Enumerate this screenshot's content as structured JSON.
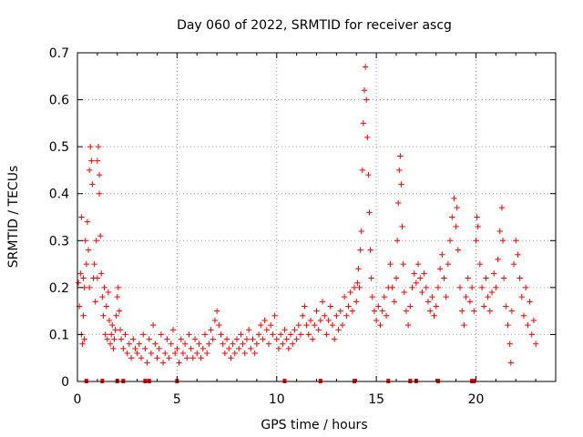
{
  "chart_data": {
    "type": "scatter",
    "title": "Day 060 of 2022, SRMTID for receiver ascg",
    "xlabel": "GPS time / hours",
    "ylabel": "SRMTID / TECUs",
    "xlim": [
      0,
      24
    ],
    "ylim": [
      0,
      0.7
    ],
    "grid": true,
    "marker": "+",
    "color": "#ff0000",
    "xticks": [
      {
        "v": 0,
        "label": "0"
      },
      {
        "v": 5,
        "label": "5"
      },
      {
        "v": 10,
        "label": "10"
      },
      {
        "v": 15,
        "label": "15"
      },
      {
        "v": 20,
        "label": "20"
      }
    ],
    "yticks": [
      {
        "v": 0,
        "label": "0"
      },
      {
        "v": 0.1,
        "label": "0.1"
      },
      {
        "v": 0.2,
        "label": "0.2"
      },
      {
        "v": 0.3,
        "label": "0.3"
      },
      {
        "v": 0.4,
        "label": "0.4"
      },
      {
        "v": 0.5,
        "label": "0.5"
      },
      {
        "v": 0.6,
        "label": "0.6"
      },
      {
        "v": 0.7,
        "label": "0.7"
      }
    ],
    "baseline_markers_x": [
      0.45,
      1.25,
      2.0,
      2.3,
      3.4,
      3.6,
      5.0,
      10.4,
      12.2,
      13.9,
      15.6,
      16.7,
      17.0,
      18.1,
      19.8,
      19.9
    ],
    "series": [
      {
        "name": "SRMTID",
        "points": [
          [
            0.05,
            0.21
          ],
          [
            0.1,
            0.16
          ],
          [
            0.15,
            0.23
          ],
          [
            0.2,
            0.1
          ],
          [
            0.2,
            0.35
          ],
          [
            0.25,
            0.08
          ],
          [
            0.3,
            0.22
          ],
          [
            0.3,
            0.14
          ],
          [
            0.35,
            0.2
          ],
          [
            0.35,
            0.09
          ],
          [
            0.4,
            0.3
          ],
          [
            0.45,
            0.25
          ],
          [
            0.5,
            0.34
          ],
          [
            0.55,
            0.28
          ],
          [
            0.6,
            0.45
          ],
          [
            0.6,
            0.2
          ],
          [
            0.65,
            0.5
          ],
          [
            0.7,
            0.47
          ],
          [
            0.75,
            0.42
          ],
          [
            0.8,
            0.22
          ],
          [
            0.85,
            0.25
          ],
          [
            0.9,
            0.17
          ],
          [
            0.95,
            0.3
          ],
          [
            1.0,
            0.22
          ],
          [
            1.0,
            0.47
          ],
          [
            1.05,
            0.5
          ],
          [
            1.1,
            0.44
          ],
          [
            1.1,
            0.4
          ],
          [
            1.15,
            0.31
          ],
          [
            1.2,
            0.23
          ],
          [
            1.25,
            0.18
          ],
          [
            1.3,
            0.14
          ],
          [
            1.35,
            0.2
          ],
          [
            1.4,
            0.1
          ],
          [
            1.45,
            0.16
          ],
          [
            1.5,
            0.09
          ],
          [
            1.55,
            0.19
          ],
          [
            1.6,
            0.13
          ],
          [
            1.65,
            0.08
          ],
          [
            1.7,
            0.1
          ],
          [
            1.75,
            0.12
          ],
          [
            1.8,
            0.07
          ],
          [
            1.85,
            0.09
          ],
          [
            1.9,
            0.11
          ],
          [
            1.95,
            0.14
          ],
          [
            2.0,
            0.18
          ],
          [
            2.05,
            0.2
          ],
          [
            2.1,
            0.15
          ],
          [
            2.15,
            0.11
          ],
          [
            2.2,
            0.09
          ],
          [
            2.3,
            0.07
          ],
          [
            2.4,
            0.1
          ],
          [
            2.5,
            0.06
          ],
          [
            2.6,
            0.08
          ],
          [
            2.7,
            0.05
          ],
          [
            2.8,
            0.09
          ],
          [
            2.9,
            0.07
          ],
          [
            3.0,
            0.06
          ],
          [
            3.1,
            0.08
          ],
          [
            3.2,
            0.05
          ],
          [
            3.3,
            0.1
          ],
          [
            3.4,
            0.07
          ],
          [
            3.5,
            0.04
          ],
          [
            3.6,
            0.09
          ],
          [
            3.7,
            0.06
          ],
          [
            3.8,
            0.12
          ],
          [
            3.9,
            0.08
          ],
          [
            4.0,
            0.05
          ],
          [
            4.1,
            0.07
          ],
          [
            4.2,
            0.1
          ],
          [
            4.3,
            0.04
          ],
          [
            4.4,
            0.06
          ],
          [
            4.5,
            0.09
          ],
          [
            4.6,
            0.05
          ],
          [
            4.7,
            0.08
          ],
          [
            4.8,
            0.11
          ],
          [
            4.9,
            0.06
          ],
          [
            5.0,
            0.07
          ],
          [
            5.1,
            0.04
          ],
          [
            5.2,
            0.09
          ],
          [
            5.3,
            0.06
          ],
          [
            5.4,
            0.08
          ],
          [
            5.5,
            0.05
          ],
          [
            5.6,
            0.1
          ],
          [
            5.7,
            0.07
          ],
          [
            5.8,
            0.05
          ],
          [
            5.9,
            0.09
          ],
          [
            6.0,
            0.06
          ],
          [
            6.1,
            0.08
          ],
          [
            6.2,
            0.05
          ],
          [
            6.3,
            0.07
          ],
          [
            6.4,
            0.1
          ],
          [
            6.5,
            0.06
          ],
          [
            6.6,
            0.08
          ],
          [
            6.7,
            0.11
          ],
          [
            6.8,
            0.09
          ],
          [
            6.9,
            0.13
          ],
          [
            7.0,
            0.15
          ],
          [
            7.1,
            0.12
          ],
          [
            7.2,
            0.1
          ],
          [
            7.3,
            0.08
          ],
          [
            7.4,
            0.06
          ],
          [
            7.5,
            0.09
          ],
          [
            7.6,
            0.07
          ],
          [
            7.7,
            0.05
          ],
          [
            7.8,
            0.08
          ],
          [
            7.9,
            0.06
          ],
          [
            8.0,
            0.09
          ],
          [
            8.1,
            0.07
          ],
          [
            8.2,
            0.1
          ],
          [
            8.3,
            0.08
          ],
          [
            8.4,
            0.06
          ],
          [
            8.5,
            0.09
          ],
          [
            8.6,
            0.11
          ],
          [
            8.7,
            0.07
          ],
          [
            8.8,
            0.09
          ],
          [
            8.9,
            0.06
          ],
          [
            9.0,
            0.08
          ],
          [
            9.1,
            0.1
          ],
          [
            9.2,
            0.12
          ],
          [
            9.3,
            0.09
          ],
          [
            9.4,
            0.13
          ],
          [
            9.5,
            0.11
          ],
          [
            9.6,
            0.08
          ],
          [
            9.7,
            0.12
          ],
          [
            9.8,
            0.1
          ],
          [
            9.9,
            0.14
          ],
          [
            10.0,
            0.09
          ],
          [
            10.1,
            0.07
          ],
          [
            10.2,
            0.1
          ],
          [
            10.3,
            0.08
          ],
          [
            10.4,
            0.11
          ],
          [
            10.5,
            0.09
          ],
          [
            10.6,
            0.07
          ],
          [
            10.7,
            0.1
          ],
          [
            10.8,
            0.08
          ],
          [
            10.9,
            0.11
          ],
          [
            11.0,
            0.09
          ],
          [
            11.1,
            0.12
          ],
          [
            11.2,
            0.1
          ],
          [
            11.3,
            0.14
          ],
          [
            11.4,
            0.16
          ],
          [
            11.5,
            0.12
          ],
          [
            11.6,
            0.1
          ],
          [
            11.7,
            0.13
          ],
          [
            11.8,
            0.09
          ],
          [
            11.9,
            0.12
          ],
          [
            12.0,
            0.15
          ],
          [
            12.1,
            0.11
          ],
          [
            12.2,
            0.13
          ],
          [
            12.3,
            0.17
          ],
          [
            12.4,
            0.14
          ],
          [
            12.5,
            0.1
          ],
          [
            12.6,
            0.13
          ],
          [
            12.7,
            0.16
          ],
          [
            12.8,
            0.12
          ],
          [
            12.9,
            0.09
          ],
          [
            13.0,
            0.14
          ],
          [
            13.1,
            0.11
          ],
          [
            13.2,
            0.15
          ],
          [
            13.3,
            0.12
          ],
          [
            13.4,
            0.18
          ],
          [
            13.5,
            0.14
          ],
          [
            13.6,
            0.16
          ],
          [
            13.7,
            0.19
          ],
          [
            13.8,
            0.15
          ],
          [
            13.9,
            0.2
          ],
          [
            14.0,
            0.17
          ],
          [
            14.05,
            0.21
          ],
          [
            14.1,
            0.24
          ],
          [
            14.15,
            0.2
          ],
          [
            14.2,
            0.28
          ],
          [
            14.25,
            0.32
          ],
          [
            14.3,
            0.45
          ],
          [
            14.35,
            0.55
          ],
          [
            14.4,
            0.62
          ],
          [
            14.45,
            0.67
          ],
          [
            14.5,
            0.6
          ],
          [
            14.55,
            0.52
          ],
          [
            14.6,
            0.44
          ],
          [
            14.65,
            0.36
          ],
          [
            14.7,
            0.28
          ],
          [
            14.75,
            0.22
          ],
          [
            14.8,
            0.18
          ],
          [
            14.9,
            0.15
          ],
          [
            15.0,
            0.13
          ],
          [
            15.1,
            0.16
          ],
          [
            15.2,
            0.12
          ],
          [
            15.3,
            0.15
          ],
          [
            15.4,
            0.18
          ],
          [
            15.5,
            0.14
          ],
          [
            15.6,
            0.2
          ],
          [
            15.7,
            0.25
          ],
          [
            15.8,
            0.2
          ],
          [
            15.9,
            0.17
          ],
          [
            16.0,
            0.22
          ],
          [
            16.05,
            0.3
          ],
          [
            16.1,
            0.38
          ],
          [
            16.15,
            0.45
          ],
          [
            16.2,
            0.48
          ],
          [
            16.25,
            0.42
          ],
          [
            16.3,
            0.33
          ],
          [
            16.35,
            0.25
          ],
          [
            16.4,
            0.19
          ],
          [
            16.5,
            0.15
          ],
          [
            16.6,
            0.12
          ],
          [
            16.7,
            0.16
          ],
          [
            16.8,
            0.2
          ],
          [
            16.9,
            0.23
          ],
          [
            17.0,
            0.21
          ],
          [
            17.1,
            0.25
          ],
          [
            17.2,
            0.22
          ],
          [
            17.3,
            0.19
          ],
          [
            17.4,
            0.23
          ],
          [
            17.5,
            0.2
          ],
          [
            17.6,
            0.17
          ],
          [
            17.7,
            0.15
          ],
          [
            17.8,
            0.18
          ],
          [
            17.9,
            0.14
          ],
          [
            18.0,
            0.16
          ],
          [
            18.1,
            0.2
          ],
          [
            18.2,
            0.24
          ],
          [
            18.3,
            0.27
          ],
          [
            18.4,
            0.22
          ],
          [
            18.5,
            0.18
          ],
          [
            18.6,
            0.25
          ],
          [
            18.7,
            0.3
          ],
          [
            18.8,
            0.35
          ],
          [
            18.9,
            0.39
          ],
          [
            19.0,
            0.33
          ],
          [
            19.05,
            0.37
          ],
          [
            19.1,
            0.28
          ],
          [
            19.2,
            0.2
          ],
          [
            19.3,
            0.15
          ],
          [
            19.4,
            0.12
          ],
          [
            19.5,
            0.18
          ],
          [
            19.6,
            0.22
          ],
          [
            19.7,
            0.17
          ],
          [
            19.8,
            0.2
          ],
          [
            19.9,
            0.15
          ],
          [
            20.0,
            0.3
          ],
          [
            20.05,
            0.35
          ],
          [
            20.1,
            0.33
          ],
          [
            20.2,
            0.25
          ],
          [
            20.3,
            0.2
          ],
          [
            20.4,
            0.16
          ],
          [
            20.5,
            0.22
          ],
          [
            20.6,
            0.18
          ],
          [
            20.7,
            0.15
          ],
          [
            20.8,
            0.19
          ],
          [
            20.9,
            0.23
          ],
          [
            21.0,
            0.2
          ],
          [
            21.1,
            0.26
          ],
          [
            21.2,
            0.32
          ],
          [
            21.3,
            0.37
          ],
          [
            21.35,
            0.3
          ],
          [
            21.4,
            0.22
          ],
          [
            21.5,
            0.16
          ],
          [
            21.6,
            0.12
          ],
          [
            21.7,
            0.08
          ],
          [
            21.75,
            0.04
          ],
          [
            21.8,
            0.15
          ],
          [
            21.9,
            0.25
          ],
          [
            22.0,
            0.3
          ],
          [
            22.1,
            0.27
          ],
          [
            22.2,
            0.22
          ],
          [
            22.3,
            0.18
          ],
          [
            22.4,
            0.14
          ],
          [
            22.5,
            0.2
          ],
          [
            22.6,
            0.12
          ],
          [
            22.7,
            0.17
          ],
          [
            22.8,
            0.1
          ],
          [
            22.9,
            0.13
          ],
          [
            23.0,
            0.08
          ]
        ]
      }
    ]
  }
}
